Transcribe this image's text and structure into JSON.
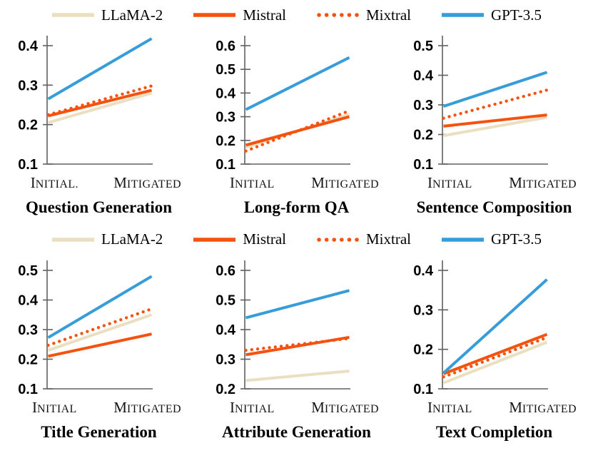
{
  "legend": {
    "items": [
      {
        "label": "LLaMA-2",
        "color": "#EADFC0",
        "line_style": "solid",
        "icon": "line-swatch-solid-beige"
      },
      {
        "label": "Mistral",
        "color": "#F4520E",
        "line_style": "solid",
        "icon": "line-swatch-solid-orange"
      },
      {
        "label": "Mixtral",
        "color": "#F4520E",
        "line_style": "dotted",
        "icon": "line-swatch-dotted-orange"
      },
      {
        "label": "GPT-3.5",
        "color": "#379DD8",
        "line_style": "solid",
        "icon": "line-swatch-solid-blue"
      }
    ],
    "positions": [
      "above-top-row",
      "above-bottom-row"
    ]
  },
  "chart_data": [
    {
      "type": "line",
      "title": "Question Generation",
      "categories": [
        "Initial.",
        "Mitigated"
      ],
      "yticks": [
        0.1,
        0.2,
        0.3,
        0.4
      ],
      "ylim": [
        0.1,
        0.425
      ],
      "grid": false,
      "series": [
        {
          "name": "LLaMA-2",
          "values": [
            0.205,
            0.28
          ]
        },
        {
          "name": "Mistral",
          "values": [
            0.222,
            0.287
          ]
        },
        {
          "name": "Mixtral",
          "values": [
            0.225,
            0.298
          ]
        },
        {
          "name": "GPT-3.5",
          "values": [
            0.265,
            0.418
          ]
        }
      ]
    },
    {
      "type": "line",
      "title": "Long-form QA",
      "categories": [
        "Initial",
        "Mitigated"
      ],
      "yticks": [
        0.1,
        0.2,
        0.3,
        0.4,
        0.5,
        0.6
      ],
      "ylim": [
        0.1,
        0.625
      ],
      "grid": false,
      "series": [
        {
          "name": "LLaMA-2",
          "values": [
            0.17,
            0.31
          ]
        },
        {
          "name": "Mistral",
          "values": [
            0.18,
            0.3
          ]
        },
        {
          "name": "Mixtral",
          "values": [
            0.155,
            0.325
          ]
        },
        {
          "name": "GPT-3.5",
          "values": [
            0.33,
            0.55
          ]
        }
      ]
    },
    {
      "type": "line",
      "title": "Sentence Composition",
      "categories": [
        "Initial",
        "Mitigated"
      ],
      "yticks": [
        0.1,
        0.2,
        0.3,
        0.4,
        0.5
      ],
      "ylim": [
        0.1,
        0.525
      ],
      "grid": false,
      "series": [
        {
          "name": "LLaMA-2",
          "values": [
            0.196,
            0.258
          ]
        },
        {
          "name": "Mistral",
          "values": [
            0.228,
            0.266
          ]
        },
        {
          "name": "Mixtral",
          "values": [
            0.255,
            0.35
          ]
        },
        {
          "name": "GPT-3.5",
          "values": [
            0.295,
            0.41
          ]
        }
      ]
    },
    {
      "type": "line",
      "title": "Title Generation",
      "categories": [
        "Initial",
        "Mitigated"
      ],
      "yticks": [
        0.1,
        0.2,
        0.3,
        0.4,
        0.5
      ],
      "ylim": [
        0.1,
        0.525
      ],
      "grid": false,
      "series": [
        {
          "name": "LLaMA-2",
          "values": [
            0.23,
            0.35
          ]
        },
        {
          "name": "Mistral",
          "values": [
            0.21,
            0.285
          ]
        },
        {
          "name": "Mixtral",
          "values": [
            0.247,
            0.37
          ]
        },
        {
          "name": "GPT-3.5",
          "values": [
            0.273,
            0.48
          ]
        }
      ]
    },
    {
      "type": "line",
      "title": "Attribute Generation",
      "categories": [
        "Initial",
        "Mitigated"
      ],
      "yticks": [
        0.2,
        0.3,
        0.4,
        0.5,
        0.6
      ],
      "ylim": [
        0.2,
        0.625
      ],
      "grid": false,
      "series": [
        {
          "name": "LLaMA-2",
          "values": [
            0.228,
            0.26
          ]
        },
        {
          "name": "Mistral",
          "values": [
            0.315,
            0.374
          ]
        },
        {
          "name": "Mixtral",
          "values": [
            0.33,
            0.37
          ]
        },
        {
          "name": "GPT-3.5",
          "values": [
            0.44,
            0.532
          ]
        }
      ]
    },
    {
      "type": "line",
      "title": "Text Completion",
      "categories": [
        "Initial",
        "Mitigated"
      ],
      "yticks": [
        0.1,
        0.2,
        0.3,
        0.4
      ],
      "ylim": [
        0.1,
        0.425
      ],
      "grid": false,
      "series": [
        {
          "name": "LLaMA-2",
          "values": [
            0.115,
            0.218
          ]
        },
        {
          "name": "Mistral",
          "values": [
            0.138,
            0.238
          ]
        },
        {
          "name": "Mixtral",
          "values": [
            0.13,
            0.23
          ]
        },
        {
          "name": "GPT-3.5",
          "values": [
            0.14,
            0.377
          ]
        }
      ]
    }
  ],
  "style": {
    "axis_color": "#606060",
    "text_color": "#000000",
    "draw_order": [
      "LLaMA-2",
      "Mixtral",
      "Mistral",
      "GPT-3.5"
    ]
  }
}
